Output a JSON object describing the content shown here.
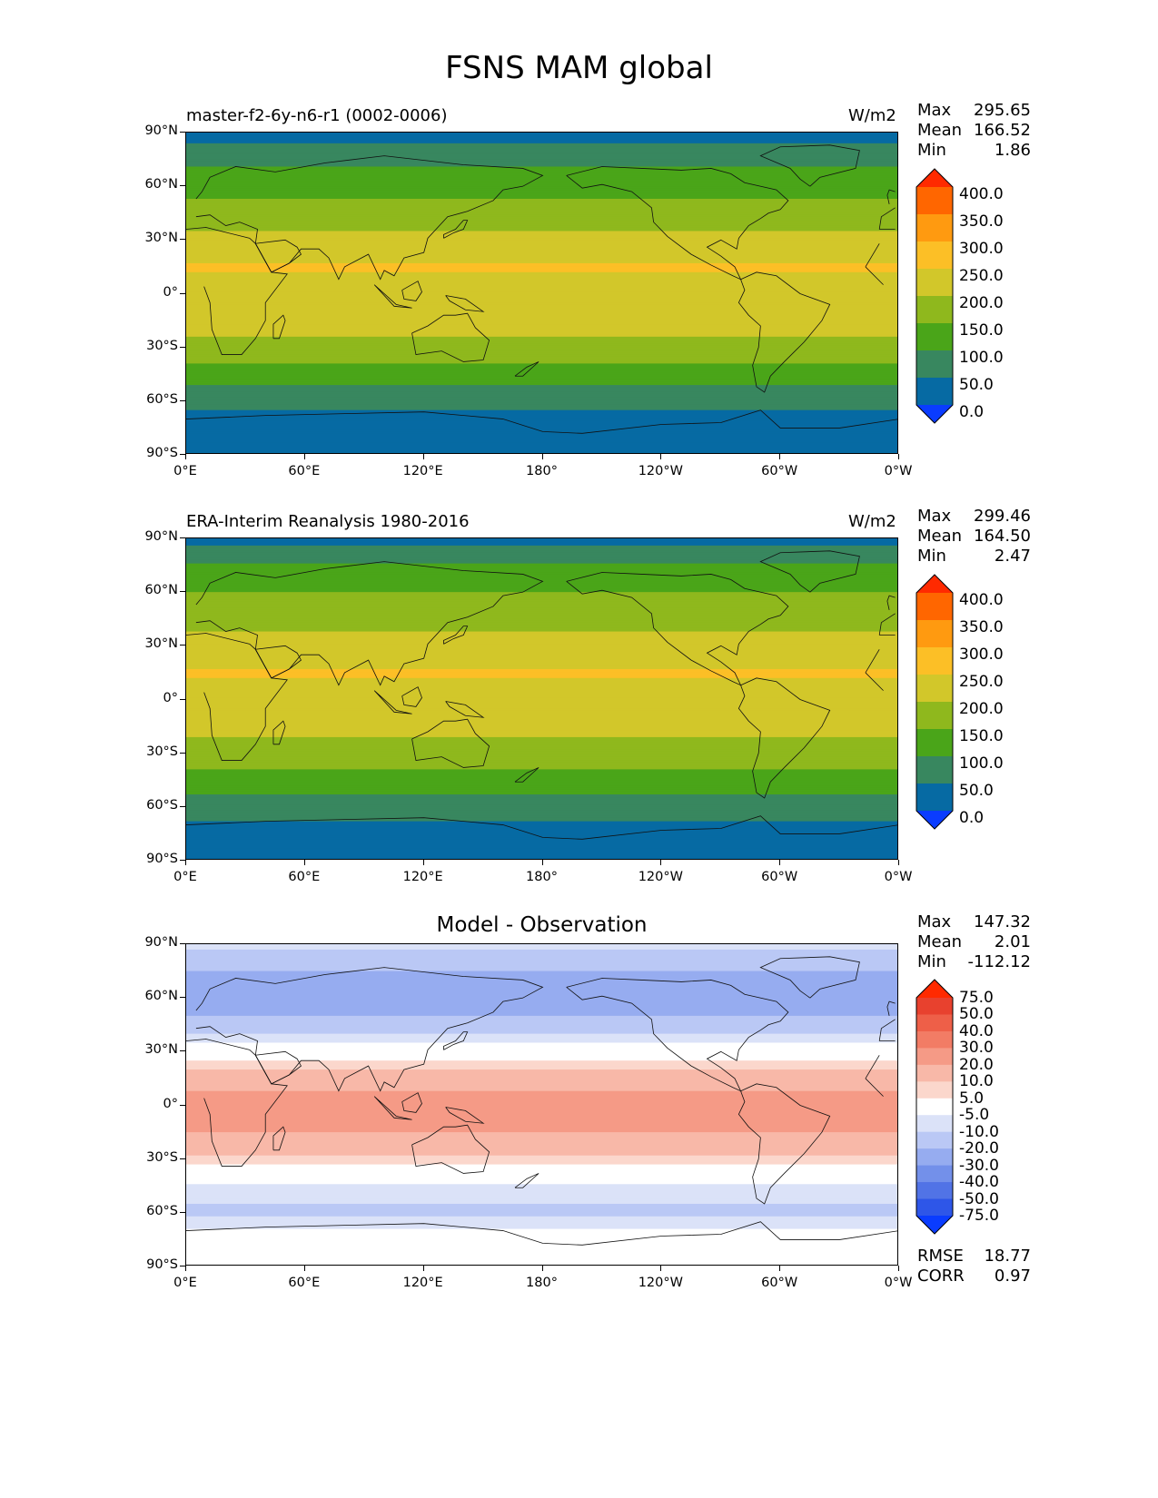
{
  "page": {
    "title": "FSNS MAM global"
  },
  "axes": {
    "lat_ticks": [
      "90°N",
      "60°N",
      "30°N",
      "0°",
      "30°S",
      "60°S",
      "90°S"
    ],
    "lon_ticks": [
      "0°E",
      "60°E",
      "120°E",
      "180°",
      "120°W",
      "60°W",
      "0°W"
    ]
  },
  "panels": [
    {
      "id": "model",
      "subtitle_left": "master-f2-6y-n6-r1 (0002-0006)",
      "subtitle_right": "W/m2",
      "stats": [
        {
          "label": "Max",
          "value": "295.65"
        },
        {
          "label": "Mean",
          "value": "166.52"
        },
        {
          "label": "Min",
          "value": "1.86"
        }
      ]
    },
    {
      "id": "obs",
      "subtitle_left": "ERA-Interim Reanalysis 1980-2016",
      "subtitle_right": "W/m2",
      "stats": [
        {
          "label": "Max",
          "value": "299.46"
        },
        {
          "label": "Mean",
          "value": "164.50"
        },
        {
          "label": "Min",
          "value": "2.47"
        }
      ]
    },
    {
      "id": "diff",
      "subtitle_center": "Model - Observation",
      "stats": [
        {
          "label": "Max",
          "value": "147.32"
        },
        {
          "label": "Mean",
          "value": "2.01"
        },
        {
          "label": "Min",
          "value": "-112.12"
        }
      ],
      "extra_stats": [
        {
          "label": "RMSE",
          "value": "18.77"
        },
        {
          "label": "CORR",
          "value": "0.97"
        }
      ]
    }
  ],
  "colorbars": {
    "absolute": {
      "labels": [
        "400.0",
        "350.0",
        "300.0",
        "250.0",
        "200.0",
        "150.0",
        "100.0",
        "50.0",
        "0.0"
      ],
      "colors_top_to_bottom": [
        "#ff2a00",
        "#ff6600",
        "#ff9a10",
        "#fcbf26",
        "#d2c72a",
        "#8fb81d",
        "#4aa519",
        "#38875f",
        "#066aa3",
        "#0a3cff"
      ]
    },
    "difference": {
      "labels": [
        "75.0",
        "50.0",
        "40.0",
        "30.0",
        "20.0",
        "10.0",
        "5.0",
        "-5.0",
        "-10.0",
        "-20.0",
        "-30.0",
        "-40.0",
        "-50.0",
        "-75.0"
      ],
      "colors_top_to_bottom": [
        "#ff2a00",
        "#e8412e",
        "#ee5f48",
        "#f27c65",
        "#f59a86",
        "#f8b8a8",
        "#fbd7cc",
        "#ffffff",
        "#dbe2f8",
        "#bac8f5",
        "#96acf0",
        "#7390ea",
        "#5173e6",
        "#2e56e8",
        "#0a3cff"
      ]
    }
  },
  "chart_data": [
    {
      "type": "heatmap",
      "title": "master-f2-6y-n6-r1 (0002-0006)",
      "units": "W/m2",
      "xlabel": "",
      "ylabel": "",
      "x_ticks": [
        "0°E",
        "60°E",
        "120°E",
        "180°",
        "120°W",
        "60°W",
        "0°W"
      ],
      "y_ticks": [
        "90°N",
        "60°N",
        "30°N",
        "0°",
        "30°S",
        "60°S",
        "90°S"
      ],
      "levels": [
        0,
        50,
        100,
        150,
        200,
        250,
        300,
        350,
        400
      ],
      "zonal_profile": [
        {
          "lat": 90,
          "value": 25
        },
        {
          "lat": 75,
          "value": 90
        },
        {
          "lat": 60,
          "value": 130
        },
        {
          "lat": 45,
          "value": 170
        },
        {
          "lat": 30,
          "value": 215
        },
        {
          "lat": 15,
          "value": 255
        },
        {
          "lat": 0,
          "value": 230
        },
        {
          "lat": -15,
          "value": 220
        },
        {
          "lat": -30,
          "value": 185
        },
        {
          "lat": -45,
          "value": 125
        },
        {
          "lat": -60,
          "value": 60
        },
        {
          "lat": -75,
          "value": 30
        },
        {
          "lat": -90,
          "value": 10
        }
      ],
      "max": 295.65,
      "mean": 166.52,
      "min": 1.86
    },
    {
      "type": "heatmap",
      "title": "ERA-Interim Reanalysis 1980-2016",
      "units": "W/m2",
      "xlabel": "",
      "ylabel": "",
      "x_ticks": [
        "0°E",
        "60°E",
        "120°E",
        "180°",
        "120°W",
        "60°W",
        "0°W"
      ],
      "y_ticks": [
        "90°N",
        "60°N",
        "30°N",
        "0°",
        "30°S",
        "60°S",
        "90°S"
      ],
      "levels": [
        0,
        50,
        100,
        150,
        200,
        250,
        300,
        350,
        400
      ],
      "zonal_profile": [
        {
          "lat": 90,
          "value": 30
        },
        {
          "lat": 75,
          "value": 105
        },
        {
          "lat": 60,
          "value": 150
        },
        {
          "lat": 45,
          "value": 180
        },
        {
          "lat": 30,
          "value": 220
        },
        {
          "lat": 15,
          "value": 255
        },
        {
          "lat": 0,
          "value": 225
        },
        {
          "lat": -15,
          "value": 215
        },
        {
          "lat": -30,
          "value": 180
        },
        {
          "lat": -45,
          "value": 130
        },
        {
          "lat": -60,
          "value": 75
        },
        {
          "lat": -75,
          "value": 30
        },
        {
          "lat": -90,
          "value": 10
        }
      ],
      "max": 299.46,
      "mean": 164.5,
      "min": 2.47
    },
    {
      "type": "heatmap",
      "title": "Model - Observation",
      "units": "",
      "xlabel": "",
      "ylabel": "",
      "x_ticks": [
        "0°E",
        "60°E",
        "120°E",
        "180°",
        "120°W",
        "60°W",
        "0°W"
      ],
      "y_ticks": [
        "90°N",
        "60°N",
        "30°N",
        "0°",
        "30°S",
        "60°S",
        "90°S"
      ],
      "levels": [
        -75,
        -50,
        -40,
        -30,
        -20,
        -10,
        -5,
        5,
        10,
        20,
        30,
        40,
        50,
        75
      ],
      "zonal_profile": [
        {
          "lat": 90,
          "value": -8
        },
        {
          "lat": 75,
          "value": -20
        },
        {
          "lat": 60,
          "value": -30
        },
        {
          "lat": 45,
          "value": -15
        },
        {
          "lat": 30,
          "value": 0
        },
        {
          "lat": 15,
          "value": 15
        },
        {
          "lat": 0,
          "value": 25
        },
        {
          "lat": -15,
          "value": 20
        },
        {
          "lat": -30,
          "value": 8
        },
        {
          "lat": -45,
          "value": -6
        },
        {
          "lat": -60,
          "value": -12
        },
        {
          "lat": -75,
          "value": 0
        },
        {
          "lat": -90,
          "value": 0
        }
      ],
      "max": 147.32,
      "mean": 2.01,
      "min": -112.12,
      "rmse": 18.77,
      "corr": 0.97
    }
  ]
}
